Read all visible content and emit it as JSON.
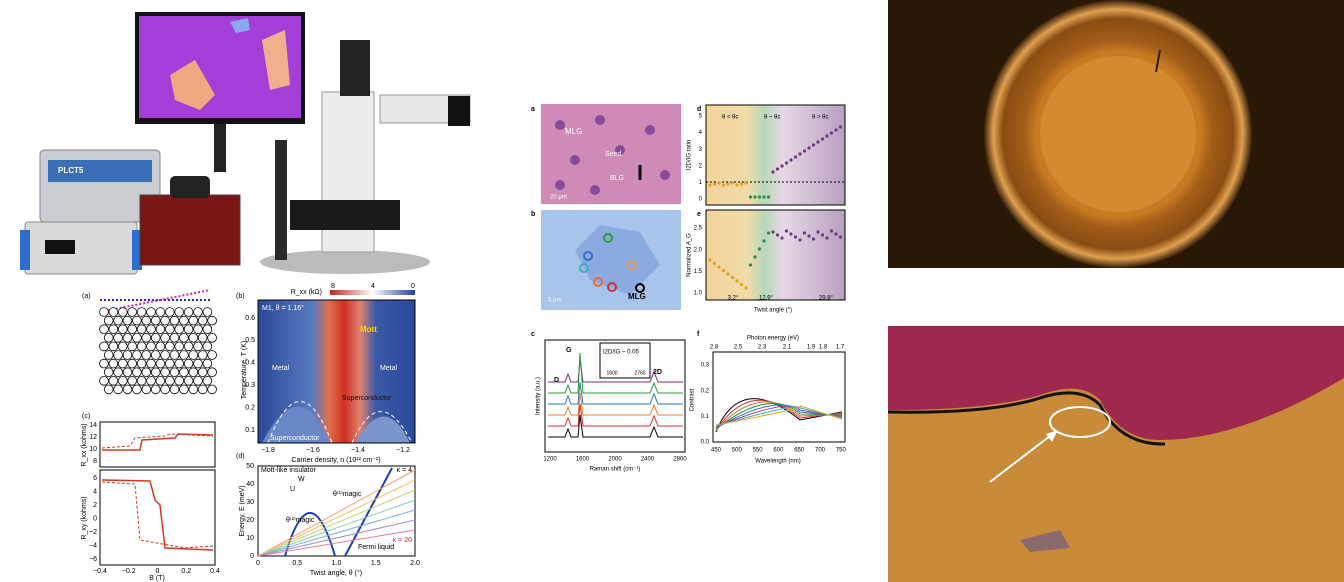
{
  "setup_photo": {
    "brand": "PLCT5"
  },
  "figure_left": {
    "a": {
      "label": "(a)"
    },
    "b": {
      "label": "(b)",
      "colorbar_title": "R_xx (kΩ)",
      "colorbar_ticks": [
        "8",
        "4",
        "0"
      ],
      "sample": "M1, θ = 1.16°",
      "mott": "Mott",
      "metal_left": "Metal",
      "metal_right": "Metal",
      "sc_left": "Superconductor",
      "sc_right": "Superconductor",
      "y_label": "Temperature, T (K)",
      "y_ticks": [
        "0.6",
        "0.5",
        "0.4",
        "0.3",
        "0.2",
        "0.1"
      ],
      "x_ticks": [
        "−1.8",
        "−1.6",
        "−1.4",
        "−1.2"
      ],
      "x_label": "Carrier density, n (10¹² cm⁻²)"
    },
    "c": {
      "label": "(c)",
      "top_y_label": "R_xx (kohms)",
      "top_y_ticks": [
        "14",
        "12",
        "10",
        "8"
      ],
      "bottom_y_label": "R_xy (kohms)",
      "bottom_y_ticks": [
        "6",
        "4",
        "2",
        "0",
        "−2",
        "−4",
        "−6"
      ],
      "x_ticks": [
        "−0.4",
        "−0.2",
        "0",
        "0.2",
        "0.4"
      ],
      "x_label": "B (T)"
    },
    "d": {
      "label": "(d)",
      "legend_title": "Mott-like insulator",
      "legend_w": "W",
      "legend_u": "U",
      "theta2": "θ⁽²⁾magic",
      "theta1": "θ⁽¹⁾magic",
      "kappa4": "κ = 4",
      "kappa20": "κ = 20",
      "fermi": "Fermi liquid",
      "y_label": "Energy, E (meV)",
      "y_ticks": [
        "50",
        "40",
        "30",
        "20",
        "10",
        "0"
      ],
      "x_ticks": [
        "0",
        "0.5",
        "1.0",
        "1.5",
        "2.0"
      ],
      "x_label": "Twist angle, θ (°)"
    }
  },
  "figure_middle": {
    "a": {
      "label": "a",
      "mlg": "MLG",
      "seed": "Seed",
      "blg": "BLG",
      "scale": "20 μm"
    },
    "b": {
      "label": "b",
      "scale": "5 μm",
      "mlg": "MLG"
    },
    "c": {
      "label": "c",
      "g": "G",
      "d": "D",
      "two_d": "2D",
      "inset_ratio": "I2D/IG ~ 0.05",
      "inset_ticks": [
        "1600",
        "2760"
      ],
      "y_label": "Intensity (a.u.)",
      "x_ticks": [
        "1200",
        "1600",
        "2000",
        "2400",
        "2800"
      ],
      "x_label": "Raman shift (cm⁻¹)"
    },
    "d": {
      "label": "d",
      "regions": [
        "θ < θc",
        "θ ~ θc",
        "θ > θc"
      ],
      "y_label": "I2D/IG ratio",
      "y_ticks": [
        "5",
        "4",
        "3",
        "2",
        "1",
        "0"
      ]
    },
    "e": {
      "label": "e",
      "y_label": "Normalized A_G",
      "y_ticks": [
        "2.5",
        "2.0",
        "1.5",
        "1.0"
      ],
      "angles": [
        "3.2°",
        "12.9°",
        "29.8°"
      ],
      "x_label": "Twist angle (°)"
    },
    "f": {
      "label": "f",
      "top_label": "Photon energy (eV)",
      "top_ticks": [
        "2.8",
        "2.5",
        "2.3",
        "2.1",
        "1.9",
        "1.8",
        "1.7"
      ],
      "y_label": "Contrast",
      "y_ticks": [
        "0.3",
        "0.2",
        "0.1",
        "0.0"
      ],
      "x_ticks": [
        "450",
        "500",
        "550",
        "600",
        "650",
        "700",
        "750"
      ],
      "x_label": "Wavelength (nm)"
    }
  }
}
